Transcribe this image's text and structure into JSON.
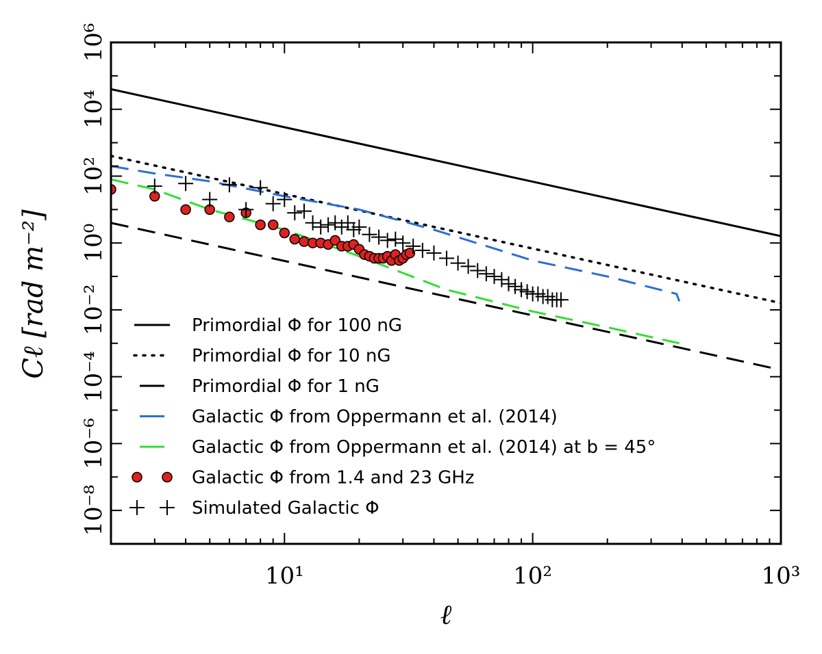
{
  "chart_data": {
    "type": "line",
    "xscale": "log",
    "yscale": "log",
    "xlim": [
      2,
      1000
    ],
    "ylim": [
      1e-09,
      1000000
    ],
    "xlabel": "ℓ",
    "ylabel": "Cℓ [rad m⁻²]",
    "x_ticks": [
      {
        "value": 10,
        "label": "10¹"
      },
      {
        "value": 100,
        "label": "10²"
      },
      {
        "value": 1000,
        "label": "10³"
      }
    ],
    "y_ticks": [
      {
        "value": 1000000,
        "label": "10⁶"
      },
      {
        "value": 10000,
        "label": "10⁴"
      },
      {
        "value": 100,
        "label": "10²"
      },
      {
        "value": 1,
        "label": "10⁰"
      },
      {
        "value": 0.01,
        "label": "10⁻²"
      },
      {
        "value": 0.0001,
        "label": "10⁻⁴"
      },
      {
        "value": 1e-06,
        "label": "10⁻⁶"
      },
      {
        "value": 1e-08,
        "label": "10⁻⁸"
      }
    ],
    "legend_position": "lower-left",
    "series": [
      {
        "name": "Primordial Φ for 100 nG",
        "style": "solid",
        "color": "#000000",
        "x": [
          2,
          1000
        ],
        "y": [
          40000,
          1.6
        ]
      },
      {
        "name": "Primordial Φ for 10 nG",
        "style": "dotted",
        "color": "#000000",
        "x": [
          2,
          1000
        ],
        "y": [
          400,
          0.016
        ]
      },
      {
        "name": "Primordial Φ for 1 nG",
        "style": "dashed",
        "color": "#000000",
        "x": [
          2,
          1000
        ],
        "y": [
          4,
          0.00016
        ]
      },
      {
        "name": "Galactic Φ from Oppermann et al. (2014)",
        "style": "dashed",
        "color": "#2b6fd6",
        "x": [
          2,
          3,
          5,
          10,
          20,
          40,
          100,
          200,
          380,
          390
        ],
        "y": [
          200,
          120,
          70,
          25,
          10,
          2.5,
          0.3,
          0.1,
          0.03,
          0.018
        ]
      },
      {
        "name": "Galactic Φ from Oppermann et al. (2014) at b = 45°",
        "style": "dashed",
        "color": "#33dd33",
        "x": [
          2,
          3,
          5,
          10,
          20,
          45,
          100,
          200,
          390
        ],
        "y": [
          80,
          40,
          10,
          2.5,
          0.4,
          0.04,
          0.009,
          0.003,
          0.001
        ]
      },
      {
        "name": "Galactic Φ from 1.4 and 23 GHz",
        "style": "markers-circle",
        "color": "#dd2222",
        "x": [
          2,
          3,
          4,
          5,
          6,
          7,
          8,
          9,
          10,
          11,
          12,
          13,
          14,
          15,
          16,
          17,
          18,
          19,
          20,
          21,
          22,
          23,
          24,
          25,
          26,
          27,
          28,
          29,
          30,
          31,
          32
        ],
        "y": [
          40,
          25,
          10,
          10,
          6,
          8,
          3.5,
          3.5,
          2,
          1.3,
          1.1,
          1,
          1,
          0.9,
          1.2,
          0.8,
          0.8,
          0.9,
          0.65,
          0.45,
          0.4,
          0.35,
          0.35,
          0.35,
          0.4,
          0.3,
          0.45,
          0.3,
          0.35,
          0.45,
          0.5
        ]
      },
      {
        "name": "Simulated Galactic Φ",
        "style": "markers-plus",
        "color": "#000000",
        "x": [
          2,
          3,
          4,
          5,
          6,
          7,
          8,
          9,
          10,
          11,
          12,
          13,
          14,
          15,
          16,
          17,
          18,
          19,
          20,
          22,
          24,
          26,
          28,
          30,
          33,
          36,
          40,
          45,
          50,
          55,
          60,
          65,
          70,
          75,
          80,
          85,
          90,
          95,
          100,
          105,
          110,
          115,
          120,
          125,
          130
        ],
        "y": [
          200,
          50,
          60,
          20,
          55,
          10,
          45,
          15,
          20,
          8,
          9,
          4,
          3,
          3.5,
          4,
          3,
          4,
          2.5,
          3,
          1.8,
          1.5,
          1.2,
          1.3,
          1,
          0.8,
          0.6,
          0.5,
          0.35,
          0.25,
          0.2,
          0.15,
          0.12,
          0.1,
          0.08,
          0.06,
          0.05,
          0.04,
          0.035,
          0.03,
          0.03,
          0.025,
          0.025,
          0.02,
          0.02,
          0.02
        ]
      }
    ]
  }
}
